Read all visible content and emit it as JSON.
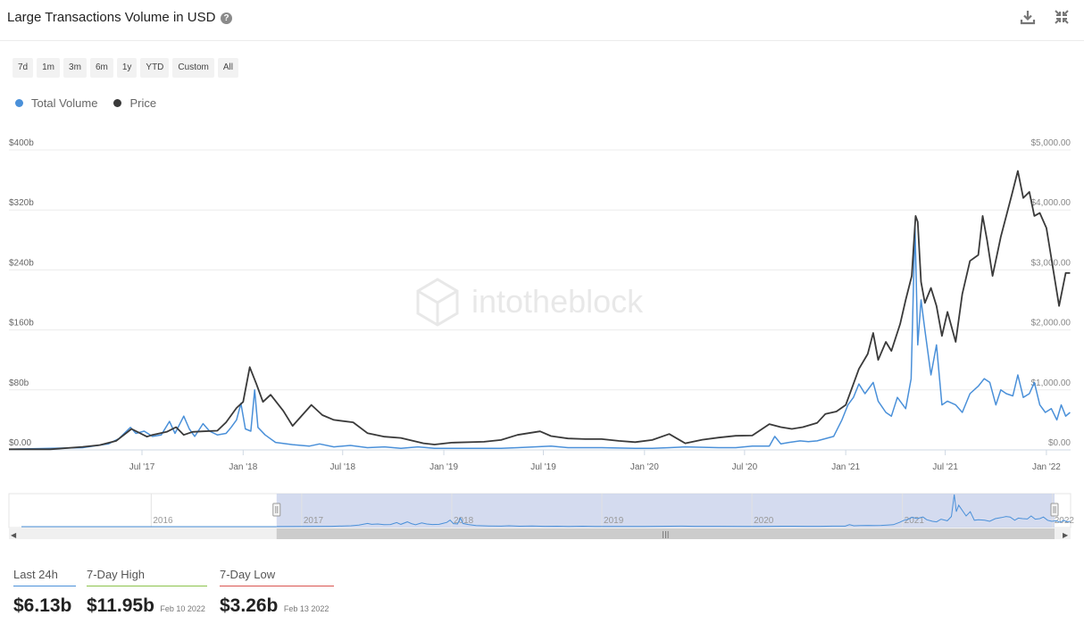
{
  "header": {
    "title": "Large Transactions Volume in USD",
    "help_icon": "question-circle-icon",
    "help_glyph": "?",
    "download_icon": "download-icon",
    "collapse_icon": "collapse-arrows-icon"
  },
  "range_buttons": [
    "7d",
    "1m",
    "3m",
    "6m",
    "1y",
    "YTD",
    "Custom",
    "All"
  ],
  "legend": [
    {
      "label": "Total Volume",
      "color": "#4a90d9"
    },
    {
      "label": "Price",
      "color": "#3a3a3a"
    }
  ],
  "watermark": "intotheblock",
  "chart_data": {
    "type": "line",
    "title": "Large Transactions Volume in USD",
    "x_ticks": [
      "Jul '17",
      "Jan '18",
      "Jul '18",
      "Jan '19",
      "Jul '19",
      "Jan '20",
      "Jul '20",
      "Jan '21",
      "Jul '21",
      "Jan '22"
    ],
    "y_left_ticks": [
      "$0.00",
      "$80b",
      "$160b",
      "$240b",
      "$320b",
      "$400b"
    ],
    "y_left_range": [
      0,
      400
    ],
    "y_left_unit": "billions USD",
    "y_right_ticks": [
      "$0.00",
      "$1,000.00",
      "$2,000.00",
      "$3,000.00",
      "$4,000.00",
      "$5,000.00"
    ],
    "y_right_range": [
      0,
      5000
    ],
    "x_range": [
      "2016-11-01",
      "2022-02-14"
    ],
    "grid": true,
    "legend_position": "top-left",
    "series": [
      {
        "name": "Total Volume",
        "axis": "left",
        "color": "#4a90d9",
        "points": [
          [
            "2016-11-01",
            1
          ],
          [
            "2017-01-15",
            2
          ],
          [
            "2017-03-15",
            3
          ],
          [
            "2017-05-01",
            8
          ],
          [
            "2017-05-20",
            15
          ],
          [
            "2017-06-10",
            30
          ],
          [
            "2017-06-20",
            22
          ],
          [
            "2017-07-05",
            25
          ],
          [
            "2017-07-20",
            18
          ],
          [
            "2017-08-05",
            20
          ],
          [
            "2017-08-20",
            38
          ],
          [
            "2017-08-30",
            22
          ],
          [
            "2017-09-15",
            45
          ],
          [
            "2017-09-25",
            28
          ],
          [
            "2017-10-05",
            18
          ],
          [
            "2017-10-20",
            35
          ],
          [
            "2017-11-01",
            25
          ],
          [
            "2017-11-15",
            20
          ],
          [
            "2017-12-01",
            22
          ],
          [
            "2017-12-10",
            30
          ],
          [
            "2017-12-20",
            40
          ],
          [
            "2017-12-28",
            62
          ],
          [
            "2018-01-05",
            28
          ],
          [
            "2018-01-15",
            25
          ],
          [
            "2018-01-22",
            80
          ],
          [
            "2018-01-28",
            30
          ],
          [
            "2018-02-10",
            20
          ],
          [
            "2018-03-01",
            10
          ],
          [
            "2018-04-01",
            7
          ],
          [
            "2018-05-01",
            5
          ],
          [
            "2018-05-20",
            8
          ],
          [
            "2018-06-15",
            4
          ],
          [
            "2018-07-15",
            6
          ],
          [
            "2018-08-15",
            3
          ],
          [
            "2018-09-15",
            4
          ],
          [
            "2018-10-15",
            2
          ],
          [
            "2018-11-15",
            4
          ],
          [
            "2018-12-15",
            2
          ],
          [
            "2019-02-15",
            2
          ],
          [
            "2019-04-15",
            2
          ],
          [
            "2019-05-15",
            3
          ],
          [
            "2019-06-15",
            4
          ],
          [
            "2019-07-15",
            5
          ],
          [
            "2019-08-15",
            3
          ],
          [
            "2019-10-15",
            3
          ],
          [
            "2019-12-15",
            2
          ],
          [
            "2020-01-15",
            2
          ],
          [
            "2020-02-15",
            3
          ],
          [
            "2020-03-15",
            4
          ],
          [
            "2020-05-15",
            3
          ],
          [
            "2020-06-15",
            3
          ],
          [
            "2020-07-15",
            5
          ],
          [
            "2020-08-15",
            5
          ],
          [
            "2020-08-25",
            18
          ],
          [
            "2020-09-05",
            8
          ],
          [
            "2020-09-20",
            10
          ],
          [
            "2020-10-10",
            12
          ],
          [
            "2020-10-25",
            11
          ],
          [
            "2020-11-10",
            12
          ],
          [
            "2020-11-25",
            15
          ],
          [
            "2020-12-10",
            18
          ],
          [
            "2020-12-25",
            40
          ],
          [
            "2021-01-05",
            60
          ],
          [
            "2021-01-15",
            70
          ],
          [
            "2021-01-25",
            88
          ],
          [
            "2021-02-05",
            75
          ],
          [
            "2021-02-20",
            90
          ],
          [
            "2021-03-01",
            65
          ],
          [
            "2021-03-15",
            50
          ],
          [
            "2021-03-25",
            45
          ],
          [
            "2021-04-05",
            70
          ],
          [
            "2021-04-20",
            55
          ],
          [
            "2021-04-30",
            95
          ],
          [
            "2021-05-07",
            300
          ],
          [
            "2021-05-12",
            140
          ],
          [
            "2021-05-18",
            200
          ],
          [
            "2021-05-25",
            160
          ],
          [
            "2021-06-05",
            100
          ],
          [
            "2021-06-15",
            140
          ],
          [
            "2021-06-25",
            60
          ],
          [
            "2021-07-05",
            65
          ],
          [
            "2021-07-20",
            60
          ],
          [
            "2021-08-01",
            50
          ],
          [
            "2021-08-15",
            75
          ],
          [
            "2021-08-30",
            85
          ],
          [
            "2021-09-10",
            95
          ],
          [
            "2021-09-20",
            90
          ],
          [
            "2021-10-01",
            60
          ],
          [
            "2021-10-10",
            80
          ],
          [
            "2021-10-20",
            75
          ],
          [
            "2021-11-01",
            72
          ],
          [
            "2021-11-10",
            100
          ],
          [
            "2021-11-20",
            70
          ],
          [
            "2021-12-01",
            75
          ],
          [
            "2021-12-10",
            90
          ],
          [
            "2021-12-20",
            60
          ],
          [
            "2021-12-30",
            50
          ],
          [
            "2022-01-10",
            55
          ],
          [
            "2022-01-20",
            40
          ],
          [
            "2022-01-28",
            60
          ],
          [
            "2022-02-05",
            45
          ],
          [
            "2022-02-13",
            50
          ]
        ]
      },
      {
        "name": "Price",
        "axis": "right",
        "color": "#3a3a3a",
        "points": [
          [
            "2016-11-01",
            10
          ],
          [
            "2017-01-15",
            10
          ],
          [
            "2017-03-15",
            50
          ],
          [
            "2017-04-15",
            80
          ],
          [
            "2017-05-15",
            150
          ],
          [
            "2017-06-12",
            350
          ],
          [
            "2017-07-10",
            220
          ],
          [
            "2017-07-20",
            250
          ],
          [
            "2017-08-15",
            300
          ],
          [
            "2017-09-01",
            380
          ],
          [
            "2017-09-15",
            250
          ],
          [
            "2017-10-01",
            300
          ],
          [
            "2017-10-20",
            310
          ],
          [
            "2017-11-15",
            320
          ],
          [
            "2017-12-01",
            460
          ],
          [
            "2017-12-20",
            700
          ],
          [
            "2018-01-01",
            800
          ],
          [
            "2018-01-13",
            1380
          ],
          [
            "2018-01-25",
            1100
          ],
          [
            "2018-02-06",
            800
          ],
          [
            "2018-02-20",
            920
          ],
          [
            "2018-03-15",
            650
          ],
          [
            "2018-04-01",
            400
          ],
          [
            "2018-05-05",
            750
          ],
          [
            "2018-05-25",
            580
          ],
          [
            "2018-06-15",
            500
          ],
          [
            "2018-07-20",
            460
          ],
          [
            "2018-08-15",
            280
          ],
          [
            "2018-09-15",
            220
          ],
          [
            "2018-10-15",
            200
          ],
          [
            "2018-11-25",
            110
          ],
          [
            "2018-12-15",
            90
          ],
          [
            "2019-01-15",
            120
          ],
          [
            "2019-03-15",
            135
          ],
          [
            "2019-04-15",
            165
          ],
          [
            "2019-05-15",
            250
          ],
          [
            "2019-06-25",
            310
          ],
          [
            "2019-07-15",
            230
          ],
          [
            "2019-08-15",
            190
          ],
          [
            "2019-09-15",
            180
          ],
          [
            "2019-10-15",
            180
          ],
          [
            "2019-11-15",
            150
          ],
          [
            "2019-12-15",
            130
          ],
          [
            "2020-01-15",
            165
          ],
          [
            "2020-02-15",
            265
          ],
          [
            "2020-03-15",
            110
          ],
          [
            "2020-04-15",
            170
          ],
          [
            "2020-05-15",
            205
          ],
          [
            "2020-06-15",
            235
          ],
          [
            "2020-07-15",
            240
          ],
          [
            "2020-08-15",
            430
          ],
          [
            "2020-09-05",
            380
          ],
          [
            "2020-09-25",
            350
          ],
          [
            "2020-10-15",
            380
          ],
          [
            "2020-11-10",
            450
          ],
          [
            "2020-11-25",
            600
          ],
          [
            "2020-12-15",
            640
          ],
          [
            "2021-01-01",
            750
          ],
          [
            "2021-01-15",
            1100
          ],
          [
            "2021-01-25",
            1350
          ],
          [
            "2021-02-10",
            1600
          ],
          [
            "2021-02-20",
            1950
          ],
          [
            "2021-03-01",
            1500
          ],
          [
            "2021-03-15",
            1800
          ],
          [
            "2021-03-25",
            1650
          ],
          [
            "2021-04-10",
            2100
          ],
          [
            "2021-04-20",
            2500
          ],
          [
            "2021-05-01",
            2900
          ],
          [
            "2021-05-08",
            3900
          ],
          [
            "2021-05-12",
            3800
          ],
          [
            "2021-05-18",
            2800
          ],
          [
            "2021-05-25",
            2450
          ],
          [
            "2021-06-05",
            2700
          ],
          [
            "2021-06-15",
            2400
          ],
          [
            "2021-06-25",
            1900
          ],
          [
            "2021-07-05",
            2300
          ],
          [
            "2021-07-20",
            1800
          ],
          [
            "2021-08-01",
            2600
          ],
          [
            "2021-08-15",
            3150
          ],
          [
            "2021-08-30",
            3250
          ],
          [
            "2021-09-07",
            3900
          ],
          [
            "2021-09-15",
            3500
          ],
          [
            "2021-09-25",
            2900
          ],
          [
            "2021-10-10",
            3550
          ],
          [
            "2021-10-30",
            4250
          ],
          [
            "2021-11-10",
            4650
          ],
          [
            "2021-11-20",
            4200
          ],
          [
            "2021-12-01",
            4300
          ],
          [
            "2021-12-10",
            3900
          ],
          [
            "2021-12-20",
            3950
          ],
          [
            "2022-01-01",
            3700
          ],
          [
            "2022-01-10",
            3200
          ],
          [
            "2022-01-24",
            2400
          ],
          [
            "2022-02-05",
            2950
          ],
          [
            "2022-02-13",
            2950
          ]
        ]
      }
    ]
  },
  "navigator": {
    "year_labels": [
      "2016",
      "2017",
      "2018",
      "2019",
      "2020",
      "2021",
      "2022"
    ],
    "scroll_left_glyph": "◀",
    "scroll_right_glyph": "▶",
    "scroll_grip_glyph": "|||"
  },
  "stats": [
    {
      "label": "Last 24h",
      "value": "$6.13b",
      "date": "",
      "color": "#4a90d9"
    },
    {
      "label": "7-Day High",
      "value": "$11.95b",
      "date": "Feb 10 2022",
      "color": "#8bc34a"
    },
    {
      "label": "7-Day Low",
      "value": "$3.26b",
      "date": "Feb 13 2022",
      "color": "#d9534f"
    }
  ]
}
